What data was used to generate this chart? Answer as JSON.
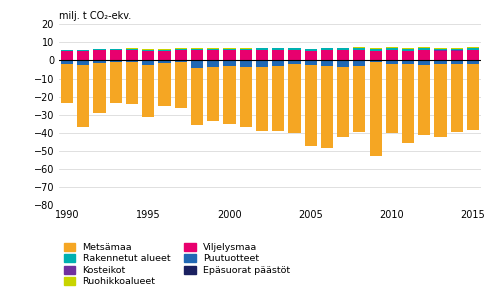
{
  "years": [
    1990,
    1991,
    1992,
    1993,
    1994,
    1995,
    1996,
    1997,
    1998,
    1999,
    2000,
    2001,
    2002,
    2003,
    2004,
    2005,
    2006,
    2007,
    2008,
    2009,
    2010,
    2011,
    2012,
    2013,
    2014,
    2015
  ],
  "Metsämaa": [
    -21.5,
    -34.5,
    -27.5,
    -22.5,
    -23.0,
    -28.5,
    -23.5,
    -25.5,
    -31.5,
    -30.0,
    -32.0,
    -33.0,
    -35.5,
    -36.0,
    -38.0,
    -44.5,
    -45.5,
    -38.5,
    -36.5,
    -51.5,
    -38.0,
    -43.5,
    -38.5,
    -40.5,
    -37.5,
    -36.5
  ],
  "Rakennetut_alueet": [
    0.5,
    0.5,
    0.5,
    0.5,
    0.6,
    0.6,
    0.6,
    0.6,
    0.6,
    0.7,
    0.7,
    0.7,
    0.7,
    0.7,
    0.8,
    0.8,
    0.8,
    0.9,
    0.9,
    0.9,
    1.0,
    1.0,
    1.0,
    1.0,
    1.0,
    1.0
  ],
  "Kosteikot": [
    0.3,
    0.3,
    0.3,
    0.3,
    0.3,
    0.3,
    0.3,
    0.3,
    0.3,
    0.3,
    0.3,
    0.3,
    0.4,
    0.4,
    0.4,
    0.4,
    0.4,
    0.4,
    0.4,
    0.4,
    0.4,
    0.4,
    0.5,
    0.5,
    0.5,
    0.5
  ],
  "Ruohikkoalueet": [
    0.2,
    0.2,
    0.2,
    0.2,
    0.2,
    0.2,
    0.2,
    0.2,
    0.2,
    0.2,
    0.2,
    0.2,
    0.2,
    0.3,
    0.3,
    0.3,
    0.3,
    0.3,
    0.4,
    0.4,
    0.4,
    0.4,
    0.4,
    0.4,
    0.4,
    0.4
  ],
  "Viljelysmaa": [
    5.0,
    5.0,
    5.5,
    5.5,
    5.5,
    5.0,
    5.0,
    5.5,
    5.5,
    5.5,
    5.5,
    5.5,
    5.5,
    5.5,
    5.5,
    5.0,
    5.5,
    5.5,
    5.5,
    5.0,
    5.5,
    5.0,
    5.5,
    5.0,
    5.0,
    5.5
  ],
  "Puutuotteet_neg": [
    -1.5,
    -2.0,
    -1.0,
    -0.5,
    -0.5,
    -2.0,
    -1.0,
    -0.5,
    -3.5,
    -3.0,
    -2.5,
    -3.0,
    -3.0,
    -2.5,
    -1.5,
    -2.0,
    -2.5,
    -3.0,
    -2.5,
    -0.5,
    -1.5,
    -1.5,
    -2.0,
    -1.5,
    -1.5,
    -1.5
  ],
  "Puutuotteet_pos": [
    0.0,
    0.0,
    0.0,
    0.0,
    0.0,
    0.0,
    0.0,
    0.0,
    0.0,
    0.0,
    0.0,
    0.0,
    0.0,
    0.0,
    0.0,
    0.0,
    0.0,
    0.0,
    0.0,
    0.0,
    0.0,
    0.0,
    0.0,
    0.0,
    0.0,
    0.0
  ],
  "Epäsuorat_päästöt": [
    -0.5,
    -0.5,
    -0.5,
    -0.5,
    -0.5,
    -0.5,
    -0.5,
    -0.5,
    -0.5,
    -0.5,
    -0.5,
    -0.5,
    -0.5,
    -0.5,
    -0.5,
    -0.5,
    -0.5,
    -0.5,
    -0.5,
    -0.5,
    -0.5,
    -0.5,
    -0.5,
    -0.5,
    -0.5,
    -0.5
  ],
  "colors": {
    "Metsämaa": "#f5a623",
    "Rakennetut_alueet": "#00b0b0",
    "Kosteikot": "#7030a0",
    "Ruohikkoalueet": "#c8d400",
    "Viljelysmaa": "#e8006e",
    "Puutuotteet": "#2068b4",
    "Epäsuorat_päästöt": "#1a2060"
  },
  "legend_labels": {
    "Metsämaa": "Metsämaa",
    "Rakennetut_alueet": "Rakennetut alueet",
    "Kosteikot": "Kosteikot",
    "Ruohikkoalueet": "Ruohikkoalueet",
    "Viljelysmaa": "Viljelysmaa",
    "Puutuotteet": "Puutuotteet",
    "Epäsuorat_päästöt": "Epäsuorat päästöt"
  },
  "ylabel": "milj. t CO₂-ekv.",
  "ylim": [
    -80,
    20
  ],
  "yticks": [
    -80,
    -70,
    -60,
    -50,
    -40,
    -30,
    -20,
    -10,
    0,
    10,
    20
  ],
  "xlim": [
    1989.5,
    2015.5
  ],
  "xticks": [
    1990,
    1995,
    2000,
    2005,
    2010,
    2015
  ]
}
